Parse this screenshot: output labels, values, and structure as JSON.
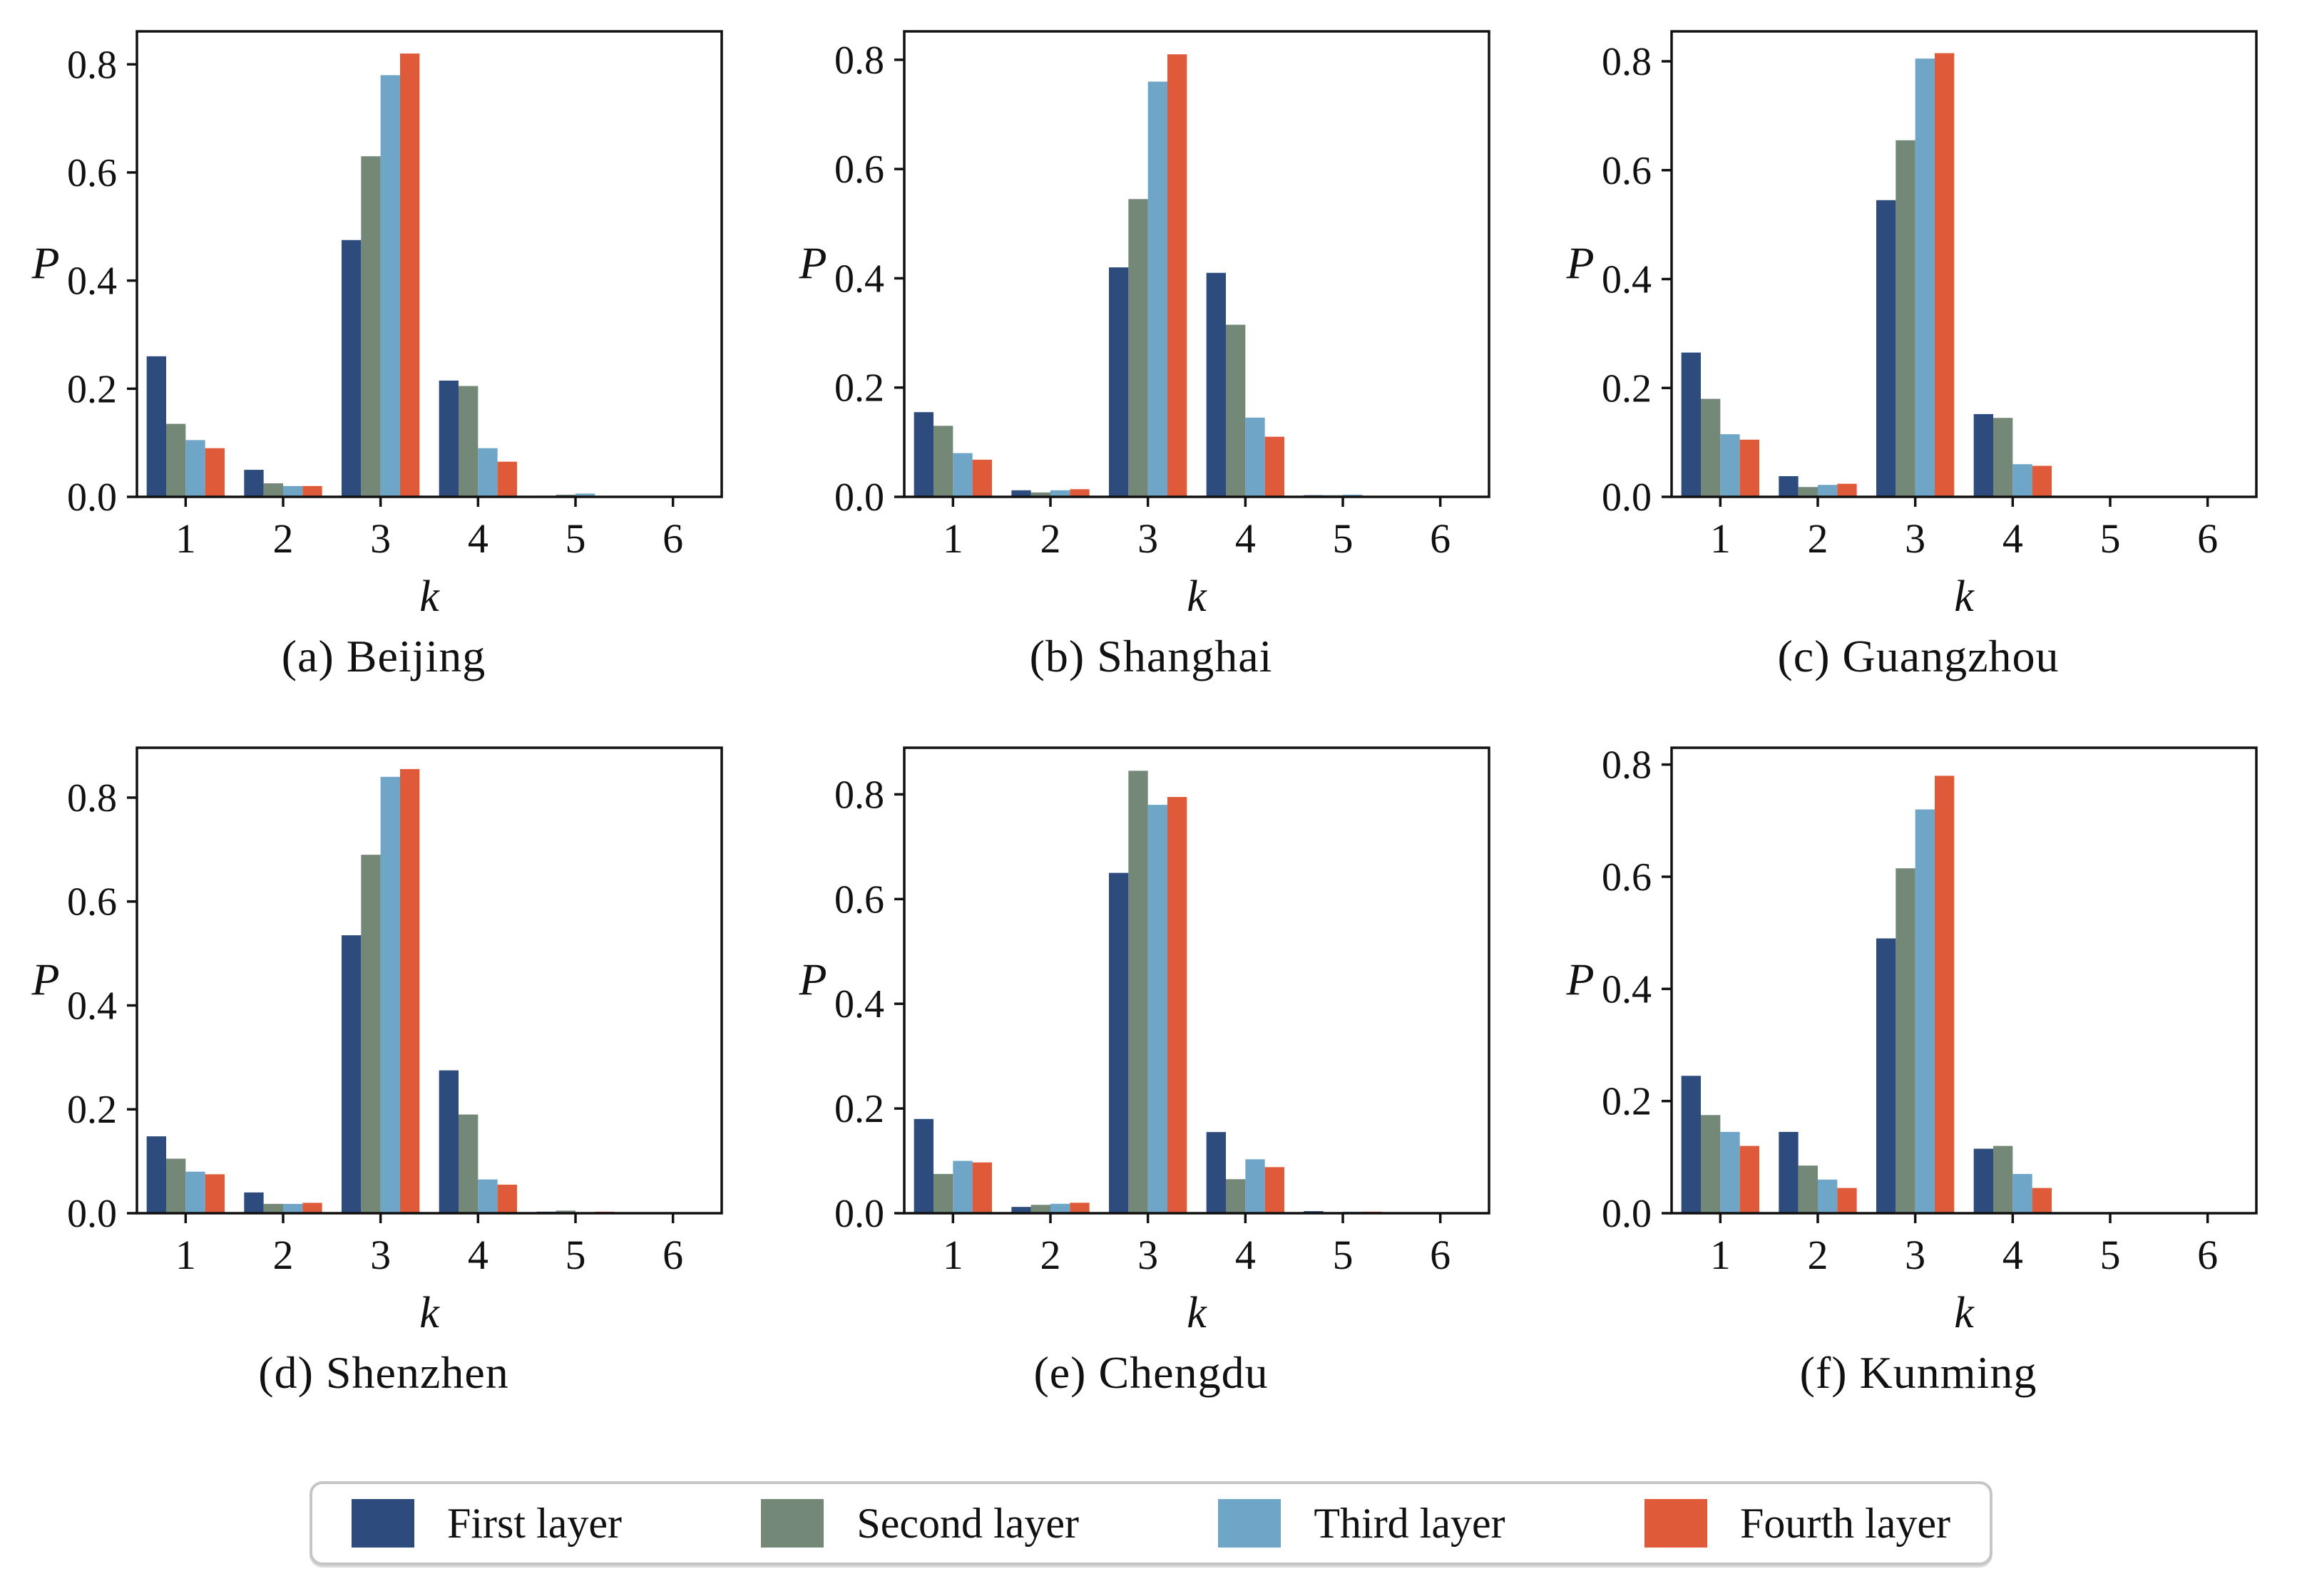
{
  "figure": {
    "ylabel": "P",
    "xlabel": "k",
    "background": "#ffffff",
    "axis_color": "#111111"
  },
  "legend": {
    "items": [
      {
        "label": "First layer",
        "color": "#2d4b7c"
      },
      {
        "label": "Second layer",
        "color": "#748878"
      },
      {
        "label": "Third layer",
        "color": "#6fa6c8"
      },
      {
        "label": "Fourth layer",
        "color": "#df5a38"
      }
    ]
  },
  "chart_data": [
    {
      "type": "bar",
      "title": "(a) Beijing",
      "xlabel": "k",
      "ylabel": "P",
      "categories": [
        1,
        2,
        3,
        4,
        5,
        6
      ],
      "yticks": [
        0.0,
        0.2,
        0.4,
        0.6,
        0.8
      ],
      "ylim": [
        0,
        0.861
      ],
      "grid": false,
      "series": [
        {
          "name": "First layer",
          "values": [
            0.26,
            0.05,
            0.475,
            0.215,
            0.002,
            0
          ]
        },
        {
          "name": "Second layer",
          "values": [
            0.135,
            0.025,
            0.63,
            0.205,
            0.004,
            0
          ]
        },
        {
          "name": "Third layer",
          "values": [
            0.105,
            0.02,
            0.78,
            0.09,
            0.006,
            0
          ]
        },
        {
          "name": "Fourth layer",
          "values": [
            0.09,
            0.02,
            0.82,
            0.065,
            0,
            0
          ]
        }
      ]
    },
    {
      "type": "bar",
      "title": "(b) Shanghai",
      "xlabel": "k",
      "ylabel": "P",
      "categories": [
        1,
        2,
        3,
        4,
        5,
        6
      ],
      "yticks": [
        0.0,
        0.2,
        0.4,
        0.6,
        0.8
      ],
      "ylim": [
        0,
        0.852
      ],
      "grid": false,
      "series": [
        {
          "name": "First layer",
          "values": [
            0.155,
            0.012,
            0.42,
            0.41,
            0.003,
            0
          ]
        },
        {
          "name": "Second layer",
          "values": [
            0.13,
            0.008,
            0.545,
            0.315,
            0.003,
            0
          ]
        },
        {
          "name": "Third layer",
          "values": [
            0.08,
            0.012,
            0.76,
            0.145,
            0.004,
            0
          ]
        },
        {
          "name": "Fourth layer",
          "values": [
            0.068,
            0.014,
            0.81,
            0.11,
            0,
            0
          ]
        }
      ]
    },
    {
      "type": "bar",
      "title": "(c) Guangzhou",
      "xlabel": "k",
      "ylabel": "P",
      "categories": [
        1,
        2,
        3,
        4,
        5,
        6
      ],
      "yticks": [
        0.0,
        0.2,
        0.4,
        0.6,
        0.8
      ],
      "ylim": [
        0,
        0.855
      ],
      "grid": false,
      "series": [
        {
          "name": "First layer",
          "values": [
            0.265,
            0.038,
            0.545,
            0.152,
            0,
            0
          ]
        },
        {
          "name": "Second layer",
          "values": [
            0.18,
            0.018,
            0.655,
            0.145,
            0,
            0
          ]
        },
        {
          "name": "Third layer",
          "values": [
            0.115,
            0.022,
            0.805,
            0.06,
            0,
            0
          ]
        },
        {
          "name": "Fourth layer",
          "values": [
            0.105,
            0.024,
            0.815,
            0.057,
            0,
            0
          ]
        }
      ]
    },
    {
      "type": "bar",
      "title": "(d) Shenzhen",
      "xlabel": "k",
      "ylabel": "P",
      "categories": [
        1,
        2,
        3,
        4,
        5,
        6
      ],
      "yticks": [
        0.0,
        0.2,
        0.4,
        0.6,
        0.8
      ],
      "ylim": [
        0,
        0.896
      ],
      "grid": false,
      "series": [
        {
          "name": "First layer",
          "values": [
            0.148,
            0.04,
            0.535,
            0.275,
            0.003,
            0
          ]
        },
        {
          "name": "Second layer",
          "values": [
            0.105,
            0.018,
            0.69,
            0.19,
            0.005,
            0
          ]
        },
        {
          "name": "Third layer",
          "values": [
            0.08,
            0.018,
            0.84,
            0.065,
            0.001,
            0
          ]
        },
        {
          "name": "Fourth layer",
          "values": [
            0.075,
            0.02,
            0.855,
            0.055,
            0.003,
            0
          ]
        }
      ]
    },
    {
      "type": "bar",
      "title": "(e) Chengdu",
      "xlabel": "k",
      "ylabel": "P",
      "categories": [
        1,
        2,
        3,
        4,
        5,
        6
      ],
      "yticks": [
        0.0,
        0.2,
        0.4,
        0.6,
        0.8
      ],
      "ylim": [
        0,
        0.889
      ],
      "grid": false,
      "series": [
        {
          "name": "First layer",
          "values": [
            0.18,
            0.012,
            0.65,
            0.155,
            0.004,
            0
          ]
        },
        {
          "name": "Second layer",
          "values": [
            0.075,
            0.016,
            0.845,
            0.065,
            0.001,
            0
          ]
        },
        {
          "name": "Third layer",
          "values": [
            0.1,
            0.018,
            0.78,
            0.103,
            0.003,
            0
          ]
        },
        {
          "name": "Fourth layer",
          "values": [
            0.097,
            0.02,
            0.795,
            0.088,
            0.003,
            0
          ]
        }
      ]
    },
    {
      "type": "bar",
      "title": "(f) Kunming",
      "xlabel": "k",
      "ylabel": "P",
      "categories": [
        1,
        2,
        3,
        4,
        5,
        6
      ],
      "yticks": [
        0.0,
        0.2,
        0.4,
        0.6,
        0.8
      ],
      "ylim": [
        0,
        0.83
      ],
      "grid": false,
      "series": [
        {
          "name": "First layer",
          "values": [
            0.245,
            0.145,
            0.49,
            0.115,
            0,
            0
          ]
        },
        {
          "name": "Second layer",
          "values": [
            0.175,
            0.085,
            0.615,
            0.12,
            0,
            0
          ]
        },
        {
          "name": "Third layer",
          "values": [
            0.145,
            0.06,
            0.72,
            0.07,
            0,
            0
          ]
        },
        {
          "name": "Fourth layer",
          "values": [
            0.12,
            0.045,
            0.78,
            0.045,
            0,
            0
          ]
        }
      ]
    }
  ]
}
